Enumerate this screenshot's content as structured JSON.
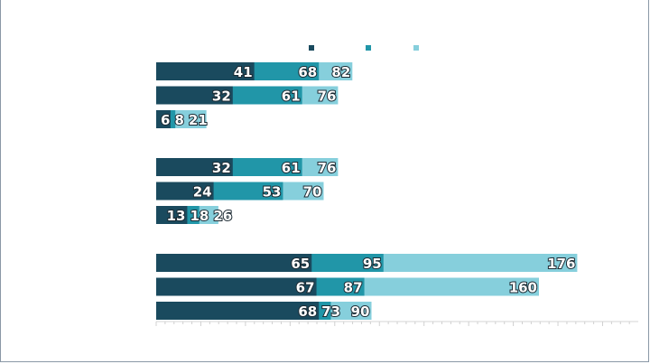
{
  "chart_data": {
    "type": "bar",
    "orientation": "horizontal",
    "layout": "overlapping",
    "xlim": [
      0,
      200
    ],
    "grid": false,
    "legend_position": "top",
    "colors": [
      "#1a4a5e",
      "#2196a8",
      "#86cfdc"
    ],
    "groups": [
      {
        "rows": [
          [
            41,
            68,
            82
          ],
          [
            32,
            61,
            76
          ],
          [
            6,
            8,
            21
          ]
        ]
      },
      {
        "rows": [
          [
            32,
            61,
            76
          ],
          [
            24,
            53,
            70
          ],
          [
            13,
            18,
            26
          ]
        ]
      },
      {
        "rows": [
          [
            65,
            95,
            176
          ],
          [
            67,
            87,
            160
          ],
          [
            68,
            73,
            90
          ]
        ]
      }
    ]
  }
}
